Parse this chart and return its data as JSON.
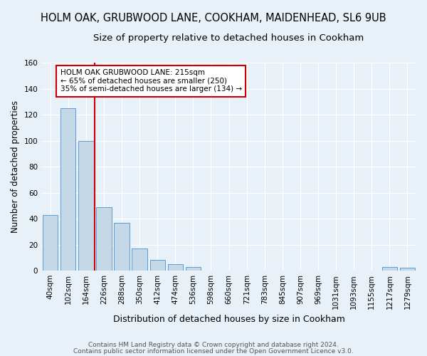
{
  "title": "HOLM OAK, GRUBWOOD LANE, COOKHAM, MAIDENHEAD, SL6 9UB",
  "subtitle": "Size of property relative to detached houses in Cookham",
  "xlabel": "Distribution of detached houses by size in Cookham",
  "ylabel": "Number of detached properties",
  "bar_labels": [
    "40sqm",
    "102sqm",
    "164sqm",
    "226sqm",
    "288sqm",
    "350sqm",
    "412sqm",
    "474sqm",
    "536sqm",
    "598sqm",
    "660sqm",
    "721sqm",
    "783sqm",
    "845sqm",
    "907sqm",
    "969sqm",
    "1031sqm",
    "1093sqm",
    "1155sqm",
    "1217sqm",
    "1279sqm"
  ],
  "bar_values": [
    43,
    125,
    100,
    49,
    37,
    17,
    8,
    5,
    3,
    0,
    0,
    0,
    0,
    0,
    0,
    0,
    0,
    0,
    0,
    3,
    2
  ],
  "bar_color": "#c5d8e8",
  "bar_edge_color": "#5b9bd5",
  "vline_x_index": 2.5,
  "vline_color": "#cc0000",
  "annotation_line1": "HOLM OAK GRUBWOOD LANE: 215sqm",
  "annotation_line2": "← 65% of detached houses are smaller (250)",
  "annotation_line3": "35% of semi-detached houses are larger (134) →",
  "annotation_box_color": "#ffffff",
  "annotation_box_edge": "#cc0000",
  "ylim": [
    0,
    160
  ],
  "yticks": [
    0,
    20,
    40,
    60,
    80,
    100,
    120,
    140,
    160
  ],
  "footnote1": "Contains HM Land Registry data © Crown copyright and database right 2024.",
  "footnote2": "Contains public sector information licensed under the Open Government Licence v3.0.",
  "bg_color": "#e8f0f8",
  "plot_bg_color": "#e8f0f8",
  "grid_color": "#ffffff",
  "title_fontsize": 10.5,
  "subtitle_fontsize": 9.5,
  "xlabel_fontsize": 9,
  "ylabel_fontsize": 8.5,
  "tick_fontsize": 7.5,
  "footnote_fontsize": 6.5
}
